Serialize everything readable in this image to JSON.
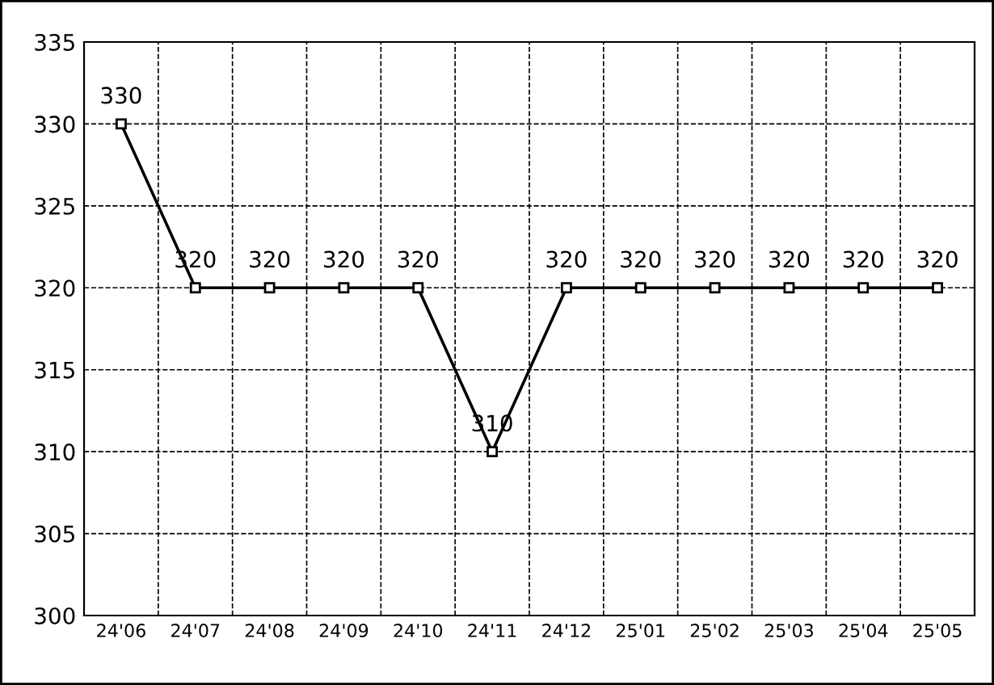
{
  "chart_data": {
    "type": "line",
    "categories": [
      "24'06",
      "24'07",
      "24'08",
      "24'09",
      "24'10",
      "24'11",
      "24'12",
      "25'01",
      "25'02",
      "25'03",
      "25'04",
      "25'05"
    ],
    "series": [
      {
        "color": "#000000",
        "values": [
          330,
          320,
          320,
          320,
          320,
          310,
          320,
          320,
          320,
          320,
          320,
          320
        ]
      }
    ],
    "ylim": [
      300,
      335
    ],
    "yticks": [
      300,
      305,
      310,
      315,
      320,
      325,
      330,
      335
    ],
    "grid": true,
    "marker": "square",
    "line_style": "solid",
    "data_labels": true
  }
}
